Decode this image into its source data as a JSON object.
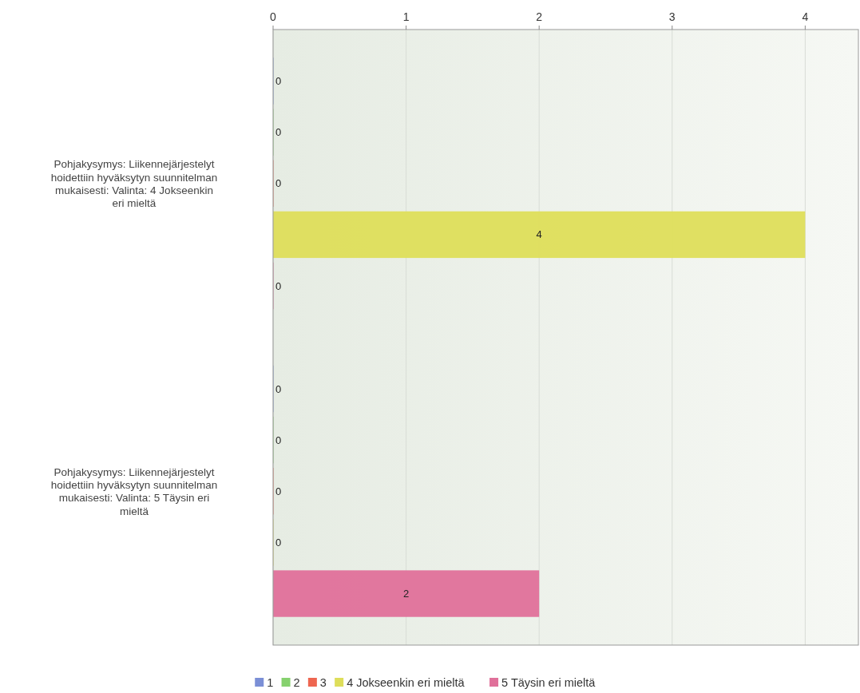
{
  "chart_data": {
    "type": "bar",
    "orientation": "horizontal",
    "categories": [
      "Pohjakysymys: Liikennejärjestelyt hoidettiin hyväksytyn suunnitelman mukaisesti: Valinta: 4 Jokseenkin eri mieltä",
      "Pohjakysymys: Liikennejärjestelyt hoidettiin hyväksytyn suunnitelman mukaisesti: Valinta: 5 Täysin eri mieltä"
    ],
    "series": [
      {
        "name": "1",
        "color": "#7b8fd6",
        "values": [
          0,
          0
        ]
      },
      {
        "name": "2",
        "color": "#86d16e",
        "values": [
          0,
          0
        ]
      },
      {
        "name": "3",
        "color": "#ee6650",
        "values": [
          0,
          0
        ]
      },
      {
        "name": "4 Jokseenkin eri mieltä",
        "color": "#dede5a",
        "values": [
          4,
          0
        ]
      },
      {
        "name": "5 Täysin eri mieltä",
        "color": "#e0709a",
        "values": [
          0,
          2
        ]
      }
    ],
    "xlim": [
      0,
      4.4
    ],
    "xticks": [
      0,
      1,
      2,
      3,
      4
    ],
    "grid": "x",
    "data_labels": true,
    "legend": "bottom"
  }
}
